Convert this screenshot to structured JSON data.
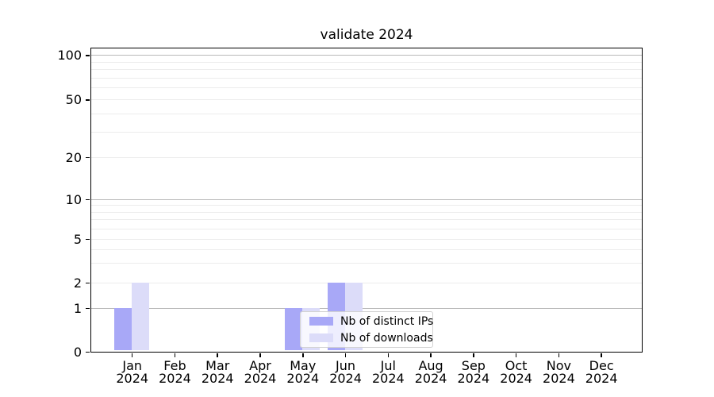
{
  "chart_data": {
    "type": "bar",
    "title": "validate 2024",
    "months": [
      "Jan",
      "Feb",
      "Mar",
      "Apr",
      "May",
      "Jun",
      "Jul",
      "Aug",
      "Sep",
      "Oct",
      "Nov",
      "Dec"
    ],
    "year": "2024",
    "categories": [
      "Jan 2024",
      "Feb 2024",
      "Mar 2024",
      "Apr 2024",
      "May 2024",
      "Jun 2024",
      "Jul 2024",
      "Aug 2024",
      "Sep 2024",
      "Oct 2024",
      "Nov 2024",
      "Dec 2024"
    ],
    "series": [
      {
        "name": "Nb of distinct IPs",
        "color": "#a8a8f7",
        "values": [
          1,
          0,
          0,
          0,
          1,
          2,
          0,
          0,
          0,
          0,
          0,
          0
        ]
      },
      {
        "name": "Nb of downloads",
        "color": "#dcdcf9",
        "values": [
          2,
          0,
          0,
          0,
          1,
          2,
          0,
          0,
          0,
          0,
          0,
          0
        ]
      }
    ],
    "yticks": [
      0,
      1,
      2,
      5,
      10,
      20,
      50,
      100
    ],
    "y_major_gridlines": [
      1,
      10,
      100
    ],
    "y_minor_gridlines": [
      2,
      3,
      4,
      5,
      6,
      7,
      8,
      9,
      20,
      30,
      40,
      50,
      60,
      70,
      80,
      90
    ],
    "yscale": "log",
    "ylim": [
      0,
      100
    ],
    "xlabel": "",
    "ylabel": "",
    "grid": "horizontal",
    "legend_position": "lower center"
  },
  "colors": {
    "background": "#ffffff",
    "axis": "#000000",
    "grid_major": "#b9b9b9",
    "grid_minor": "#ececec",
    "legend_border": "#d2d2d2"
  }
}
